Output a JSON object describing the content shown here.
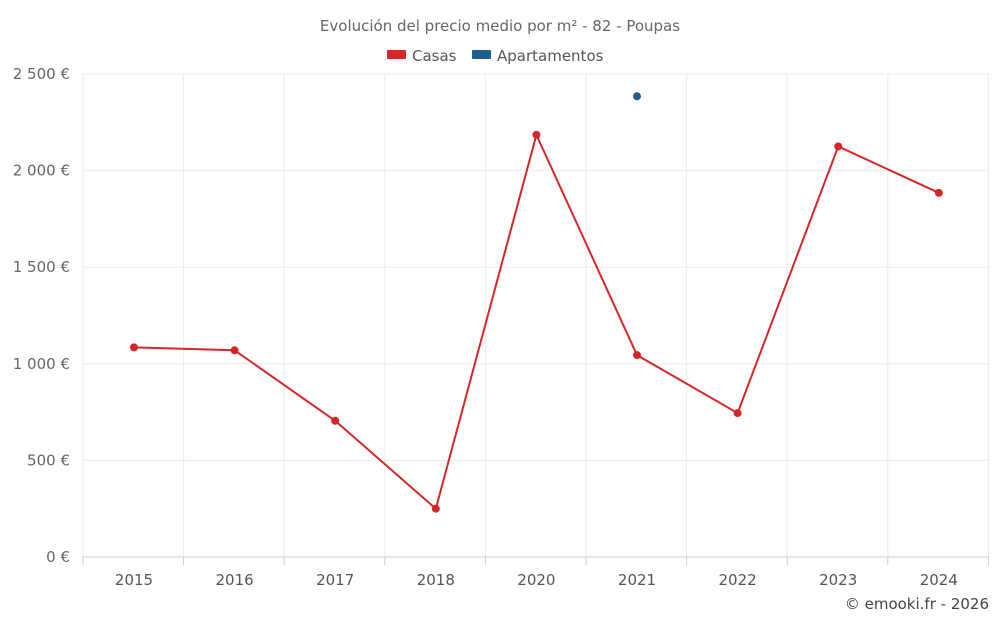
{
  "chart_data": {
    "type": "line",
    "title": "Evolución del precio medio por m² - 82 - Poupas",
    "categories": [
      "2015",
      "2016",
      "2017",
      "2018",
      "2020",
      "2021",
      "2022",
      "2023",
      "2024"
    ],
    "series": [
      {
        "name": "Casas",
        "color": "#d62728",
        "values": [
          1085,
          1070,
          705,
          250,
          2185,
          1045,
          745,
          2125,
          1885
        ]
      },
      {
        "name": "Apartamentos",
        "color": "#1f5f8b",
        "values": [
          null,
          null,
          null,
          null,
          null,
          2385,
          null,
          null,
          null
        ]
      }
    ],
    "y_ticks": [
      0,
      500,
      1000,
      1500,
      2000,
      2500
    ],
    "y_tick_labels": [
      "0 €",
      "500 €",
      "1 000 €",
      "1 500 €",
      "2 000 €",
      "2 500 €"
    ],
    "ylim": [
      0,
      2500
    ],
    "grid": true,
    "legend_position": "top-center",
    "xlabel": "",
    "ylabel": ""
  },
  "credit": "© emooki.fr - 2026"
}
